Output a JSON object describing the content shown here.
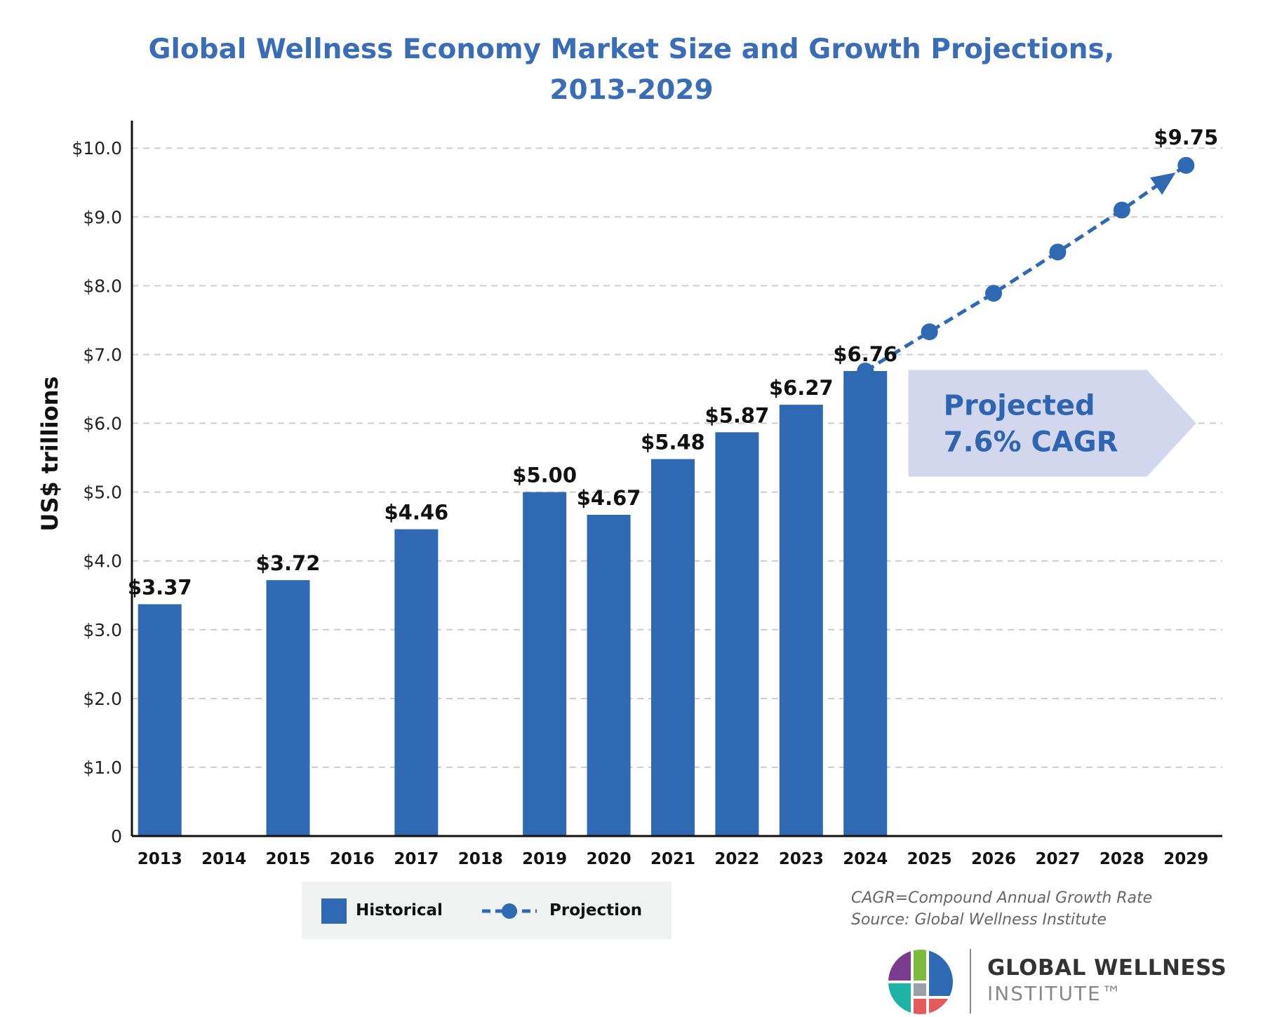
{
  "title_lines": [
    "Global Wellness Economy Market Size and Growth Projections,",
    "2013-2029"
  ],
  "chart_data": {
    "type": "bar",
    "ylabel": "US$ trillions",
    "ylim": [
      0,
      10.4
    ],
    "y_ticks": [
      "0",
      "$1.0",
      "$2.0",
      "$3.0",
      "$4.0",
      "$5.0",
      "$6.0",
      "$7.0",
      "$8.0",
      "$9.0",
      "$10.0"
    ],
    "grid": "horizontal dashed",
    "categories": [
      "2013",
      "2014",
      "2015",
      "2016",
      "2017",
      "2018",
      "2019",
      "2020",
      "2021",
      "2022",
      "2023",
      "2024",
      "2025",
      "2026",
      "2027",
      "2028",
      "2029"
    ],
    "series": [
      {
        "name": "Historical",
        "type": "bar",
        "color": "#2f69b3",
        "points": [
          {
            "x": "2013",
            "y": 3.37,
            "label": "$3.37"
          },
          {
            "x": "2015",
            "y": 3.72,
            "label": "$3.72"
          },
          {
            "x": "2017",
            "y": 4.46,
            "label": "$4.46"
          },
          {
            "x": "2019",
            "y": 5.0,
            "label": "$5.00"
          },
          {
            "x": "2020",
            "y": 4.67,
            "label": "$4.67"
          },
          {
            "x": "2021",
            "y": 5.48,
            "label": "$5.48"
          },
          {
            "x": "2022",
            "y": 5.87,
            "label": "$5.87"
          },
          {
            "x": "2023",
            "y": 6.27,
            "label": "$6.27"
          },
          {
            "x": "2024",
            "y": 6.76,
            "label": "$6.76"
          }
        ]
      },
      {
        "name": "Projection",
        "type": "line",
        "style": "dashed",
        "color": "#2f69b3",
        "points": [
          {
            "x": "2024",
            "y": 6.76
          },
          {
            "x": "2025",
            "y": 7.33
          },
          {
            "x": "2026",
            "y": 7.89
          },
          {
            "x": "2027",
            "y": 8.49
          },
          {
            "x": "2028",
            "y": 9.1
          },
          {
            "x": "2029",
            "y": 9.75,
            "label": "$9.75"
          }
        ]
      }
    ],
    "annotation": {
      "lines": [
        "Projected",
        "7.6% CAGR"
      ],
      "fill": "#d2d7ee",
      "text_color": "#2f65b0",
      "anchor_y": 6.0
    },
    "legend": {
      "placement": "bottom-left",
      "items": [
        "Historical",
        "Projection"
      ]
    }
  },
  "notes": [
    "CAGR=Compound Annual Growth Rate",
    "Source: Global Wellness Institute"
  ],
  "logo": {
    "name": "GLOBAL WELLNESS",
    "sub": "INSTITUTE™"
  }
}
